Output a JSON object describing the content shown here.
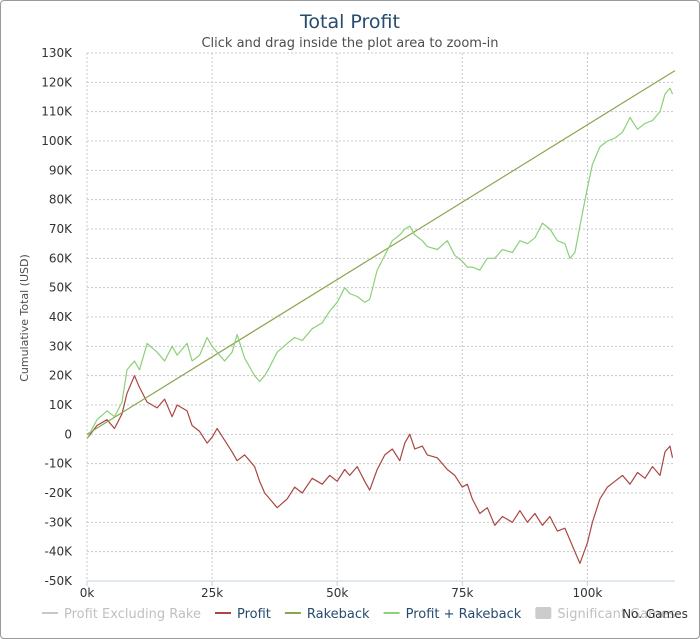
{
  "chart_data": {
    "type": "line",
    "title": "Total Profit",
    "subtitle": "Click and drag inside the plot area to zoom-in",
    "xlabel": "",
    "ylabel": "Cumulative Total (USD)",
    "x_tick_labels": [
      "0k",
      "25k",
      "50k",
      "75k",
      "100k"
    ],
    "x_ticks": [
      0,
      25000,
      50000,
      75000,
      100000
    ],
    "xlim": [
      0,
      117500
    ],
    "y_tick_labels": [
      "-50K",
      "-40K",
      "-30K",
      "-20K",
      "-10K",
      "0",
      "10K",
      "20K",
      "30K",
      "40K",
      "50K",
      "60K",
      "70K",
      "80K",
      "90K",
      "100K",
      "110K",
      "120K",
      "130K"
    ],
    "y_ticks": [
      -50000,
      -40000,
      -30000,
      -20000,
      -10000,
      0,
      10000,
      20000,
      30000,
      40000,
      50000,
      60000,
      70000,
      80000,
      90000,
      100000,
      110000,
      120000,
      130000
    ],
    "ylim": [
      -50000,
      130000
    ],
    "grid": true,
    "legend_position": "bottom",
    "series": [
      {
        "name": "Profit Excluding Rake",
        "color": "#c8c8c8",
        "visible": false,
        "x": [],
        "y": []
      },
      {
        "name": "Profit",
        "color": "#aa4643",
        "visible": true,
        "x": [
          0,
          2000,
          4000,
          5500,
          7000,
          8000,
          9500,
          10500,
          12000,
          14000,
          15500,
          17000,
          18000,
          20000,
          21000,
          22500,
          24000,
          25000,
          26000,
          27500,
          29000,
          30000,
          31500,
          32500,
          33500,
          34500,
          35500,
          36500,
          38000,
          40000,
          41500,
          43000,
          45000,
          47000,
          48500,
          50000,
          51500,
          52500,
          54000,
          55500,
          56500,
          58000,
          59500,
          61000,
          62500,
          63500,
          64500,
          65500,
          67000,
          68000,
          70000,
          72000,
          73500,
          75000,
          76000,
          77000,
          78500,
          80000,
          81500,
          83000,
          85000,
          86500,
          88000,
          89500,
          91000,
          92500,
          94000,
          95500,
          96500,
          97500,
          98500,
          100000,
          101000,
          102500,
          104000,
          105500,
          107000,
          108500,
          110000,
          111500,
          113000,
          114500,
          115500,
          116500,
          117000
        ],
        "y": [
          -1500,
          3000,
          5000,
          2000,
          7000,
          14000,
          20000,
          16000,
          11000,
          9000,
          12000,
          6000,
          10000,
          8000,
          3000,
          1000,
          -3000,
          -1000,
          2000,
          -2000,
          -6000,
          -9000,
          -7000,
          -9000,
          -11000,
          -16000,
          -20000,
          -22000,
          -25000,
          -22000,
          -18000,
          -20000,
          -15000,
          -17000,
          -14000,
          -16000,
          -12000,
          -14000,
          -11000,
          -16000,
          -19000,
          -12000,
          -7000,
          -5000,
          -9000,
          -3000,
          0,
          -5000,
          -4000,
          -7000,
          -8000,
          -12000,
          -14000,
          -18000,
          -17000,
          -22000,
          -27000,
          -25000,
          -31000,
          -28000,
          -30000,
          -26000,
          -30000,
          -27000,
          -31000,
          -28000,
          -33000,
          -32000,
          -36000,
          -40000,
          -44000,
          -37000,
          -30000,
          -22000,
          -18000,
          -16000,
          -14000,
          -17000,
          -13000,
          -15000,
          -11000,
          -14000,
          -6000,
          -4000,
          -8000
        ]
      },
      {
        "name": "Rakeback",
        "color": "#89a54e",
        "visible": true,
        "x": [
          0,
          117500
        ],
        "y": [
          0,
          124000
        ]
      },
      {
        "name": "Profit + Rakeback",
        "color": "#8cd07a",
        "visible": true,
        "x": [
          0,
          2000,
          4000,
          5500,
          7000,
          8000,
          9500,
          10500,
          12000,
          14000,
          15500,
          17000,
          18000,
          20000,
          21000,
          22500,
          24000,
          25000,
          26000,
          27500,
          29000,
          30000,
          31500,
          32500,
          33500,
          34500,
          35500,
          36500,
          38000,
          40000,
          41500,
          43000,
          45000,
          47000,
          48500,
          50000,
          51500,
          52500,
          54000,
          55500,
          56500,
          58000,
          59500,
          61000,
          62500,
          63500,
          64500,
          65500,
          67000,
          68000,
          70000,
          72000,
          73500,
          75000,
          76000,
          77000,
          78500,
          80000,
          81500,
          83000,
          85000,
          86500,
          88000,
          89500,
          91000,
          92500,
          94000,
          95500,
          96500,
          97500,
          98500,
          100000,
          101000,
          102500,
          104000,
          105500,
          107000,
          108500,
          110000,
          111500,
          113000,
          114500,
          115500,
          116500,
          117000
        ],
        "y": [
          -1500,
          5000,
          8000,
          6000,
          11000,
          22000,
          25000,
          22000,
          31000,
          28000,
          25000,
          30000,
          27000,
          31000,
          25000,
          27000,
          33000,
          30000,
          28000,
          25000,
          28000,
          34000,
          26000,
          23000,
          20000,
          18000,
          20000,
          23000,
          28000,
          31000,
          33000,
          32000,
          36000,
          38000,
          42000,
          45000,
          50000,
          48000,
          47000,
          45000,
          46000,
          56000,
          61000,
          66000,
          68000,
          70000,
          71000,
          68000,
          66000,
          64000,
          63000,
          66000,
          61000,
          59000,
          57000,
          57000,
          56000,
          60000,
          60000,
          63000,
          62000,
          66000,
          65000,
          67000,
          72000,
          70000,
          66000,
          65000,
          60000,
          62000,
          71000,
          84000,
          92000,
          98000,
          100000,
          101000,
          103000,
          108000,
          104000,
          106000,
          107000,
          110000,
          116000,
          118000,
          116000
        ]
      }
    ],
    "legend": [
      {
        "label": "Profit Excluding Rake",
        "color": "#c8c8c8",
        "text_color": "#c0c0c0",
        "type": "line"
      },
      {
        "label": "Profit",
        "color": "#aa4643",
        "text_color": "#274b6d",
        "type": "line"
      },
      {
        "label": "Rakeback",
        "color": "#89a54e",
        "text_color": "#274b6d",
        "type": "line"
      },
      {
        "label": "Profit + Rakeback",
        "color": "#8cd07a",
        "text_color": "#274b6d",
        "type": "line"
      },
      {
        "label": "Significant Games",
        "color": "#cccccc",
        "text_color": "#c0c0c0",
        "type": "box"
      }
    ],
    "footer_label": "No. Games"
  }
}
